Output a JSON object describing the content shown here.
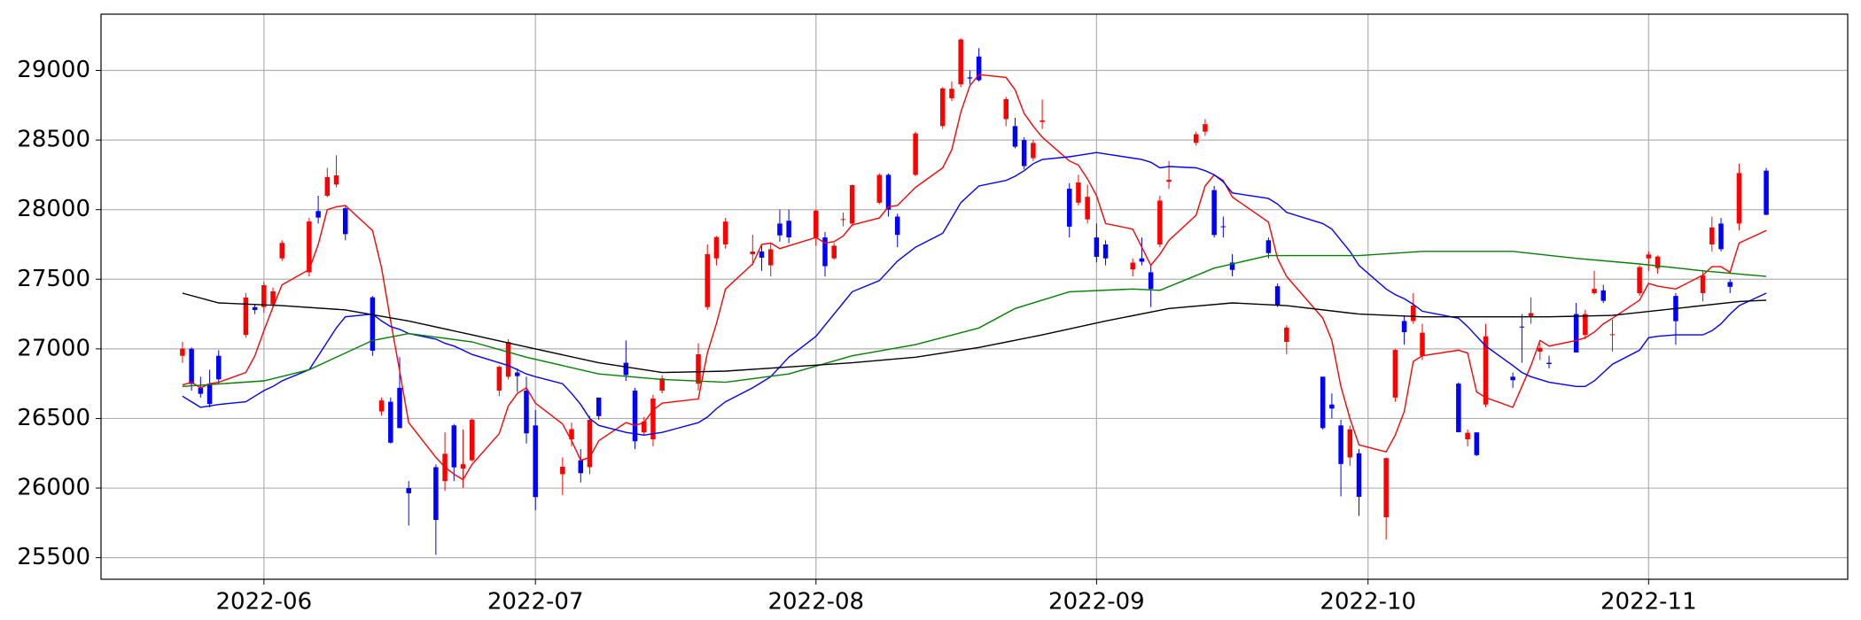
{
  "chart_data": {
    "type": "candlestick",
    "up_color": "#ff0000",
    "down_color": "#0000ff",
    "grid": true,
    "x": [
      "2022-05-23",
      "2022-05-24",
      "2022-05-25",
      "2022-05-26",
      "2022-05-27",
      "2022-05-30",
      "2022-05-31",
      "2022-06-01",
      "2022-06-02",
      "2022-06-03",
      "2022-06-06",
      "2022-06-07",
      "2022-06-08",
      "2022-06-09",
      "2022-06-10",
      "2022-06-13",
      "2022-06-14",
      "2022-06-15",
      "2022-06-16",
      "2022-06-17",
      "2022-06-20",
      "2022-06-21",
      "2022-06-22",
      "2022-06-23",
      "2022-06-24",
      "2022-06-27",
      "2022-06-28",
      "2022-06-29",
      "2022-06-30",
      "2022-07-01",
      "2022-07-04",
      "2022-07-05",
      "2022-07-06",
      "2022-07-07",
      "2022-07-08",
      "2022-07-11",
      "2022-07-12",
      "2022-07-13",
      "2022-07-14",
      "2022-07-15",
      "2022-07-19",
      "2022-07-20",
      "2022-07-21",
      "2022-07-22",
      "2022-07-25",
      "2022-07-26",
      "2022-07-27",
      "2022-07-28",
      "2022-07-29",
      "2022-08-01",
      "2022-08-02",
      "2022-08-03",
      "2022-08-04",
      "2022-08-05",
      "2022-08-08",
      "2022-08-09",
      "2022-08-10",
      "2022-08-12",
      "2022-08-15",
      "2022-08-16",
      "2022-08-17",
      "2022-08-18",
      "2022-08-19",
      "2022-08-22",
      "2022-08-23",
      "2022-08-24",
      "2022-08-25",
      "2022-08-26",
      "2022-08-29",
      "2022-08-30",
      "2022-08-31",
      "2022-09-01",
      "2022-09-02",
      "2022-09-05",
      "2022-09-06",
      "2022-09-07",
      "2022-09-08",
      "2022-09-09",
      "2022-09-12",
      "2022-09-13",
      "2022-09-14",
      "2022-09-15",
      "2022-09-16",
      "2022-09-20",
      "2022-09-21",
      "2022-09-22",
      "2022-09-26",
      "2022-09-27",
      "2022-09-28",
      "2022-09-29",
      "2022-09-30",
      "2022-10-03",
      "2022-10-04",
      "2022-10-05",
      "2022-10-06",
      "2022-10-07",
      "2022-10-11",
      "2022-10-12",
      "2022-10-13",
      "2022-10-14",
      "2022-10-17",
      "2022-10-18",
      "2022-10-19",
      "2022-10-20",
      "2022-10-21",
      "2022-10-24",
      "2022-10-25",
      "2022-10-26",
      "2022-10-27",
      "2022-10-28",
      "2022-10-31",
      "2022-11-01",
      "2022-11-02",
      "2022-11-04",
      "2022-11-07",
      "2022-11-08",
      "2022-11-09",
      "2022-11-10",
      "2022-11-11",
      "2022-11-14"
    ],
    "open": [
      26950,
      27000,
      26720,
      26750,
      26950,
      27100,
      27300,
      27300,
      27320,
      27650,
      27550,
      27990,
      28100,
      28180,
      28010,
      27370,
      26550,
      26620,
      26720,
      26000,
      26150,
      26050,
      26450,
      26140,
      26200,
      26700,
      26800,
      26830,
      26700,
      26450,
      26100,
      26350,
      26200,
      26150,
      26650,
      26900,
      26700,
      26400,
      26350,
      26700,
      26750,
      27300,
      27650,
      27750,
      27680,
      27700,
      27600,
      27900,
      27920,
      27800,
      27800,
      27650,
      27930,
      27900,
      28050,
      28250,
      27950,
      28250,
      28600,
      28800,
      28900,
      28950,
      29100,
      28650,
      28600,
      28500,
      28370,
      28630,
      28150,
      28050,
      27930,
      27800,
      27750,
      27570,
      27650,
      27550,
      27750,
      28200,
      28480,
      28560,
      28140,
      27880,
      27620,
      27780,
      27450,
      27050,
      26800,
      26600,
      26450,
      26220,
      26250,
      25790,
      26650,
      27200,
      27200,
      26950,
      26750,
      26350,
      26400,
      26600,
      26800,
      27160,
      27230,
      26980,
      26900,
      27250,
      27100,
      27400,
      27420,
      27100,
      27400,
      27650,
      27580,
      27380,
      27400,
      27750,
      27900,
      27480,
      27900,
      28280
    ],
    "high": [
      27050,
      27010,
      26800,
      26850,
      26990,
      27400,
      27320,
      27480,
      27440,
      27780,
      27940,
      28100,
      28300,
      28390,
      28020,
      27380,
      26650,
      26650,
      26940,
      26050,
      26170,
      26400,
      26460,
      26420,
      26500,
      26880,
      27070,
      26860,
      26800,
      26560,
      26220,
      26470,
      26280,
      26520,
      26650,
      27060,
      26720,
      26510,
      26670,
      26810,
      27040,
      27750,
      27810,
      27940,
      27820,
      27740,
      27760,
      28000,
      28000,
      28000,
      27840,
      27760,
      27980,
      28180,
      28260,
      28260,
      27970,
      28560,
      28880,
      28920,
      29230,
      29000,
      29160,
      28810,
      28660,
      28520,
      28500,
      28790,
      28190,
      28250,
      28180,
      27900,
      27780,
      27650,
      27800,
      27600,
      28100,
      28350,
      28560,
      28650,
      28170,
      27950,
      27680,
      27800,
      27470,
      27170,
      26800,
      26680,
      26490,
      26450,
      26280,
      26220,
      27000,
      27240,
      27400,
      27180,
      26760,
      26420,
      26400,
      27180,
      26830,
      27250,
      27370,
      27040,
      26950,
      27330,
      27280,
      27560,
      27460,
      27210,
      27600,
      27700,
      27670,
      27400,
      27560,
      27950,
      27940,
      27500,
      28330,
      28300
    ],
    "low": [
      26900,
      26700,
      26650,
      26580,
      26750,
      27080,
      27250,
      27260,
      27300,
      27630,
      27520,
      27900,
      28090,
      28160,
      27780,
      26950,
      26520,
      26320,
      26430,
      25730,
      25520,
      25980,
      26050,
      26000,
      26190,
      26660,
      26780,
      26690,
      26320,
      25840,
      25950,
      26300,
      26040,
      26100,
      26490,
      26770,
      26280,
      26380,
      26300,
      26680,
      26700,
      27280,
      27600,
      27720,
      27600,
      27560,
      27520,
      27770,
      27760,
      27740,
      27520,
      27640,
      27880,
      27880,
      28040,
      27950,
      27730,
      28240,
      28580,
      28780,
      28880,
      28900,
      28920,
      28600,
      28440,
      28290,
      28350,
      28580,
      27800,
      28030,
      27900,
      27620,
      27600,
      27520,
      27600,
      27300,
      27730,
      28150,
      28460,
      28530,
      27800,
      27800,
      27520,
      27650,
      27300,
      26960,
      26420,
      26500,
      25940,
      26160,
      25800,
      25630,
      26620,
      27030,
      27180,
      26920,
      26400,
      26300,
      26230,
      26580,
      26720,
      26900,
      27180,
      26920,
      26860,
      26980,
      27070,
      27390,
      27330,
      26980,
      27380,
      27560,
      27540,
      27030,
      27340,
      27700,
      27700,
      27400,
      27850,
      27960
    ],
    "close": [
      27001,
      26748,
      26677,
      26604,
      26781,
      27369,
      27279,
      27457,
      27413,
      27761,
      27915,
      27943,
      28234,
      28246,
      27824,
      26987,
      26629,
      26326,
      26431,
      25963,
      25771,
      26246,
      26149,
      26171,
      26491,
      26871,
      27049,
      26804,
      26393,
      25935,
      26153,
      26423,
      26107,
      26490,
      26517,
      26812,
      26336,
      26478,
      26643,
      26788,
      26961,
      27680,
      27803,
      27914,
      27699,
      27655,
      27715,
      27815,
      27801,
      27993,
      27594,
      27741,
      27932,
      28176,
      28249,
      27999,
      27819,
      28547,
      28871,
      28868,
      29222,
      28942,
      28930,
      28794,
      28452,
      28313,
      28479,
      28641,
      27878,
      28195,
      28092,
      27661,
      27650,
      27619,
      27626,
      27430,
      28065,
      28214,
      28542,
      28614,
      27818,
      27875,
      27567,
      27688,
      27313,
      27153,
      26431,
      26571,
      26173,
      26422,
      25937,
      26215,
      26992,
      27120,
      27311,
      27116,
      26401,
      26397,
      26237,
      27090,
      26775,
      27156,
      27257,
      27007,
      26891,
      26974,
      27250,
      27431,
      27345,
      27105,
      27587,
      27678,
      27663,
      27199,
      27527,
      27872,
      27716,
      27446,
      28263,
      27963
    ],
    "lines": [
      {
        "color": "#ff0000",
        "values": [
          26740,
          26760,
          26720,
          26750,
          26760,
          26830,
          26950,
          27130,
          27300,
          27460,
          27570,
          27750,
          28000,
          28020,
          28030,
          27850,
          27580,
          27200,
          26840,
          26470,
          26220,
          26150,
          26100,
          26060,
          26170,
          26390,
          26590,
          26680,
          26720,
          26610,
          26460,
          26340,
          26200,
          26220,
          26340,
          26470,
          26450,
          26470,
          26560,
          26610,
          26640,
          26970,
          27180,
          27430,
          27610,
          27750,
          27760,
          27720,
          27740,
          27800,
          27760,
          27770,
          27810,
          27890,
          27940,
          28020,
          28030,
          28160,
          28300,
          28430,
          28700,
          28890,
          28970,
          28950,
          28860,
          28690,
          28600,
          28520,
          28350,
          28320,
          28220,
          28100,
          27900,
          27860,
          27730,
          27600,
          27680,
          27780,
          27960,
          28170,
          28250,
          28210,
          28090,
          27910,
          27650,
          27520,
          27220,
          27060,
          26730,
          26500,
          26310,
          26260,
          26380,
          26550,
          26910,
          26950,
          26990,
          26970,
          26690,
          26650,
          26580,
          26730,
          26880,
          27060,
          27020,
          27060,
          27080,
          27120,
          27180,
          27220,
          27350,
          27470,
          27450,
          27430,
          27530,
          27590,
          27590,
          27550,
          27760,
          27850
        ]
      },
      {
        "color": "#0000ff",
        "values": [
          26660,
          26620,
          26580,
          26590,
          26600,
          26620,
          26660,
          26700,
          26730,
          26770,
          26850,
          26950,
          27050,
          27150,
          27230,
          27250,
          27200,
          27160,
          27140,
          27110,
          27070,
          27040,
          27020,
          26990,
          26960,
          26900,
          26880,
          26850,
          26820,
          26800,
          26750,
          26680,
          26600,
          26500,
          26450,
          26400,
          26390,
          26380,
          26390,
          26400,
          26470,
          26510,
          26570,
          26620,
          26720,
          26760,
          26800,
          26870,
          26940,
          27090,
          27170,
          27250,
          27330,
          27410,
          27490,
          27560,
          27630,
          27730,
          27830,
          27940,
          28050,
          28110,
          28170,
          28210,
          28240,
          28280,
          28330,
          28360,
          28380,
          28390,
          28400,
          28410,
          28400,
          28370,
          28360,
          28340,
          28300,
          28310,
          28300,
          28280,
          28250,
          28200,
          28120,
          28080,
          28040,
          27980,
          27900,
          27860,
          27780,
          27700,
          27600,
          27430,
          27390,
          27360,
          27320,
          27270,
          27220,
          27160,
          27090,
          27020,
          26880,
          26830,
          26800,
          26780,
          26760,
          26730,
          26730,
          26770,
          26830,
          26890,
          26990,
          27080,
          27090,
          27100,
          27100,
          27130,
          27180,
          27250,
          27310,
          27400
        ]
      },
      {
        "color": "#008000",
        "x": [
          "2022-05-23",
          "2022-06-01",
          "2022-06-06",
          "2022-06-13",
          "2022-06-17",
          "2022-06-24",
          "2022-06-30",
          "2022-07-08",
          "2022-07-15",
          "2022-07-22",
          "2022-07-29",
          "2022-08-05",
          "2022-08-12",
          "2022-08-19",
          "2022-08-23",
          "2022-08-29",
          "2022-09-05",
          "2022-09-08",
          "2022-09-14",
          "2022-09-20",
          "2022-09-30",
          "2022-10-07",
          "2022-10-17",
          "2022-10-24",
          "2022-10-31",
          "2022-11-07",
          "2022-11-14"
        ],
        "values": [
          26730,
          26770,
          26850,
          27060,
          27110,
          27050,
          26940,
          26820,
          26780,
          26760,
          26820,
          26950,
          27030,
          27150,
          27290,
          27410,
          27430,
          27420,
          27580,
          27670,
          27670,
          27700,
          27700,
          27650,
          27610,
          27560,
          27520
        ]
      },
      {
        "color": "#000000",
        "x": [
          "2022-05-23",
          "2022-05-27",
          "2022-06-03",
          "2022-06-10",
          "2022-06-17",
          "2022-06-24",
          "2022-07-01",
          "2022-07-08",
          "2022-07-15",
          "2022-07-22",
          "2022-07-29",
          "2022-08-05",
          "2022-08-12",
          "2022-08-19",
          "2022-08-26",
          "2022-09-02",
          "2022-09-09",
          "2022-09-16",
          "2022-09-22",
          "2022-09-30",
          "2022-10-07",
          "2022-10-21",
          "2022-10-28",
          "2022-11-04",
          "2022-11-11",
          "2022-11-14"
        ],
        "values": [
          27400,
          27330,
          27310,
          27280,
          27200,
          27100,
          27000,
          26900,
          26830,
          26840,
          26870,
          26900,
          26940,
          27010,
          27100,
          27200,
          27290,
          27330,
          27310,
          27250,
          27230,
          27230,
          27240,
          27290,
          27340,
          27350
        ]
      }
    ],
    "xlim": [
      "2022-05-14",
      "2022-11-23"
    ],
    "xticks": [
      {
        "value": "2022-06-01",
        "label": "2022-06"
      },
      {
        "value": "2022-07-01",
        "label": "2022-07"
      },
      {
        "value": "2022-08-01",
        "label": "2022-08"
      },
      {
        "value": "2022-09-01",
        "label": "2022-09"
      },
      {
        "value": "2022-10-01",
        "label": "2022-10"
      },
      {
        "value": "2022-11-01",
        "label": "2022-11"
      }
    ],
    "ylim": [
      25345,
      29404
    ],
    "yticks": [
      25500,
      26000,
      26500,
      27000,
      27500,
      28000,
      28500,
      29000
    ]
  }
}
